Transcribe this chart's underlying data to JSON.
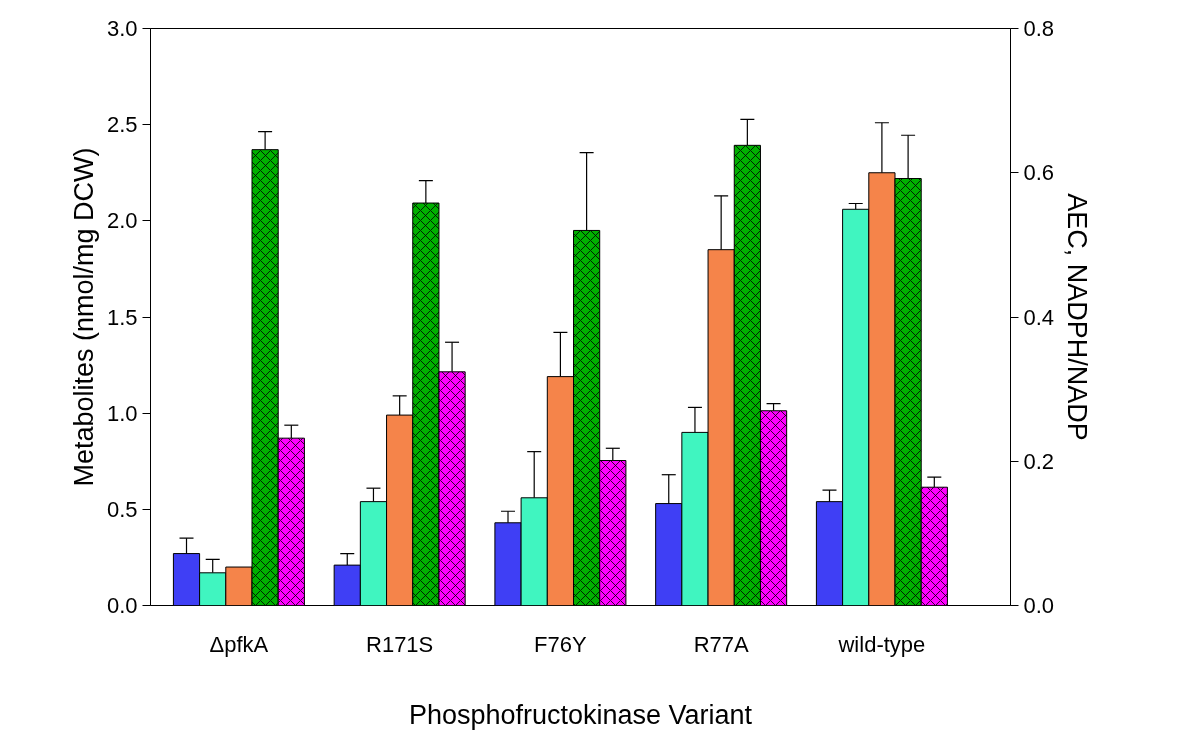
{
  "chart_data": {
    "type": "bar",
    "xlabel": "Phosphofructokinase Variant",
    "ylabel": "Metabolites (nmol/mg DCW)",
    "y2label": "AEC, NADPH/NADP",
    "categories": [
      "ΔpfkA",
      "R171S",
      "F76Y",
      "R77A",
      "wild-type"
    ],
    "series": [
      {
        "color": "#3f3ff5",
        "values": [
          0.27,
          0.21,
          0.43,
          0.53,
          0.54
        ],
        "errors": [
          [
            0.27,
            0.35
          ],
          [
            0.21,
            0.27
          ],
          [
            0.43,
            0.49
          ],
          [
            0.53,
            0.68
          ],
          [
            0.54,
            0.6
          ]
        ]
      },
      {
        "color": "#40f5c0",
        "values": [
          0.17,
          0.54,
          0.56,
          0.9,
          2.06
        ],
        "errors": [
          [
            0.17,
            0.24
          ],
          [
            0.54,
            0.61
          ],
          [
            0.56,
            0.8
          ],
          [
            0.9,
            1.03
          ],
          [
            2.06,
            2.09
          ]
        ]
      },
      {
        "color": "#f5844a",
        "values": [
          0.2,
          0.99,
          1.19,
          1.85,
          2.25
        ],
        "errors": [
          null,
          [
            0.99,
            1.09
          ],
          [
            1.19,
            1.42
          ],
          [
            1.85,
            2.13
          ],
          [
            2.25,
            2.51
          ]
        ]
      },
      {
        "color": "#00b000",
        "axis": "y2",
        "values": [
          0.632,
          0.558,
          0.52,
          0.638,
          0.592
        ],
        "errors": [
          [
            0.632,
            0.657
          ],
          [
            0.558,
            0.589
          ],
          [
            0.52,
            0.628
          ],
          [
            0.638,
            0.674
          ],
          [
            0.592,
            0.652
          ]
        ]
      },
      {
        "color": "#ff00ff",
        "axis": "y2",
        "values": [
          0.232,
          0.324,
          0.201,
          0.27,
          0.164
        ],
        "errors": [
          [
            0.232,
            0.25
          ],
          [
            0.324,
            0.365
          ],
          [
            0.201,
            0.218
          ],
          [
            0.27,
            0.28
          ],
          [
            0.164,
            0.178
          ]
        ]
      }
    ],
    "ylim": [
      0,
      3
    ],
    "yticks": [
      {
        "value": 0,
        "label": "0.0"
      },
      0.5,
      {
        "value": 1,
        "label": "1.0"
      },
      1.5,
      {
        "value": 2,
        "label": "2.0"
      },
      2.5,
      {
        "value": 3,
        "label": "3.0"
      }
    ],
    "y2lim": [
      0,
      0.8
    ],
    "y2ticks": [
      {
        "value": 0,
        "label": "0.0"
      },
      0.2,
      0.4,
      0.6,
      0.8
    ],
    "grid": false
  }
}
